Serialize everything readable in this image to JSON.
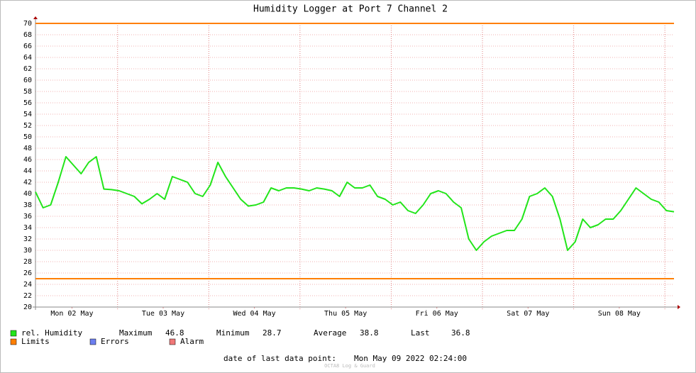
{
  "chart_data": {
    "type": "line",
    "title": "Humidity Logger at Port 7 Channel 2",
    "x": [
      2.4,
      4.4,
      6.4,
      8.4,
      10.4,
      12.4,
      14.4,
      16.4,
      18.4,
      20.4,
      22.4,
      24.4,
      26.4,
      28.4,
      30.4,
      32.4,
      34.4,
      36.4,
      38.4,
      40.4,
      42.4,
      44.4,
      46.4,
      48.4,
      50.4,
      52.4,
      54.4,
      56.4,
      58.4,
      60.4,
      62.4,
      64.4,
      66.4,
      68.4,
      70.4,
      72.4,
      74.4,
      76.4,
      78.4,
      80.4,
      82.4,
      84.4,
      86.4,
      88.4,
      90.4,
      92.4,
      94.4,
      96.4,
      98.4,
      100.4,
      102.4,
      104.4,
      106.4,
      108.4,
      110.4,
      112.4,
      114.4,
      116.4,
      118.4,
      120.4,
      122.4,
      124.4,
      126.4,
      128.4,
      130.4,
      132.4,
      134.4,
      136.4,
      138.4,
      140.4,
      142.4,
      144.4,
      146.4,
      148.4,
      150.4,
      152.4,
      154.4,
      156.4,
      158.4,
      160.4,
      162.4,
      164.4,
      166.4,
      168.4,
      170.4
    ],
    "series": [
      {
        "name": "rel. Humidity",
        "color": "#22e51a",
        "values": [
          40.3,
          37.5,
          38,
          42,
          46.5,
          45,
          43.5,
          45.5,
          46.5,
          40.8,
          40.7,
          40.5,
          40,
          39.5,
          38.2,
          39,
          40,
          39,
          43,
          42.5,
          42,
          40,
          39.5,
          41.5,
          45.5,
          43,
          41,
          39,
          37.8,
          38,
          38.5,
          41,
          40.5,
          41,
          41,
          40.8,
          40.5,
          41,
          40.8,
          40.5,
          39.5,
          42,
          41,
          41,
          41.5,
          39.5,
          39,
          38,
          38.5,
          37,
          36.5,
          38,
          40,
          40.5,
          40,
          38.5,
          37.5,
          32,
          30,
          31.5,
          32.5,
          33,
          33.5,
          33.5,
          35.5,
          39.5,
          40,
          41,
          39.5,
          35.5,
          30,
          31.5,
          35.5,
          34,
          34.5,
          35.5,
          35.5,
          37,
          39,
          41,
          40,
          39,
          38.5,
          37,
          36.8
        ]
      }
    ],
    "limits": {
      "name": "Limits",
      "color": "#ff7f00",
      "values": [
        70,
        25
      ]
    },
    "legend_extra": [
      {
        "name": "Errors",
        "color": "#6c7ff0"
      },
      {
        "name": "Alarm",
        "color": "#f07878"
      }
    ],
    "stats": [
      {
        "label": "Maximum",
        "value": 46.8
      },
      {
        "label": "Minimum",
        "value": 28.7
      },
      {
        "label": "Average",
        "value": 38.8
      },
      {
        "label": "Last",
        "value": 36.8
      }
    ],
    "xlim": [
      2.4,
      170.4
    ],
    "xticks": [
      {
        "value": 12,
        "label": "Mon 02 May"
      },
      {
        "value": 36,
        "label": "Tue 03 May"
      },
      {
        "value": 60,
        "label": "Wed 04 May"
      },
      {
        "value": 84,
        "label": "Thu 05 May"
      },
      {
        "value": 108,
        "label": "Fri 06 May"
      },
      {
        "value": 132,
        "label": "Sat 07 May"
      },
      {
        "value": 156,
        "label": "Sun 08 May"
      }
    ],
    "xgrid": [
      24,
      48,
      72,
      96,
      120,
      144,
      168
    ],
    "ylim": [
      20,
      70
    ],
    "yticks": [
      20,
      22,
      24,
      26,
      28,
      30,
      32,
      34,
      36,
      38,
      40,
      42,
      44,
      46,
      48,
      50,
      52,
      54,
      56,
      58,
      60,
      62,
      64,
      66,
      68,
      70
    ],
    "grid": true,
    "footer_label": "date of last data point:",
    "footer_date": "Mon May 09 2022 02:24:00",
    "watermark": "OCTA8 Log & Guard"
  }
}
